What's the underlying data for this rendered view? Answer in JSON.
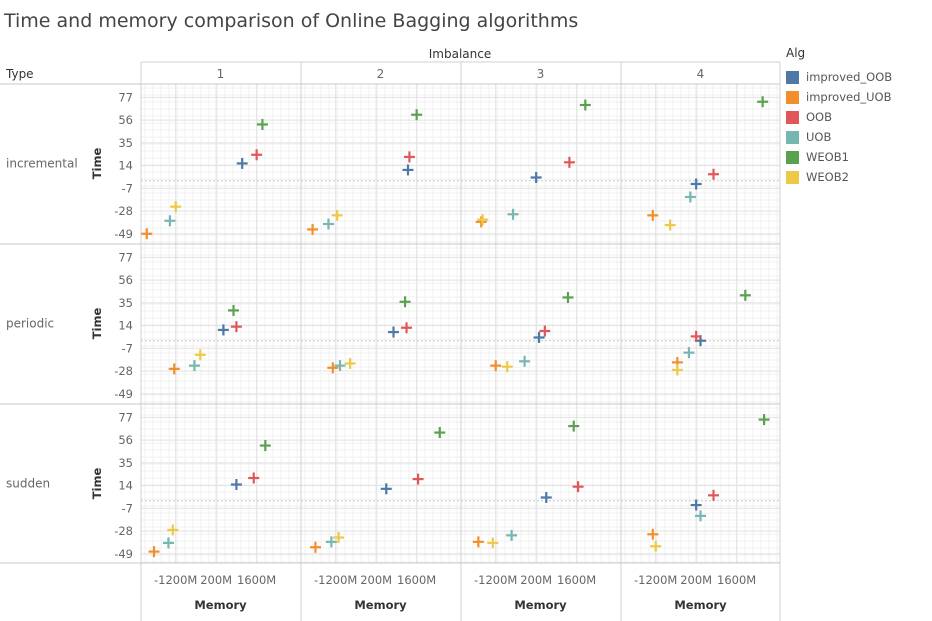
{
  "chart_data": {
    "type": "scatter",
    "title": "Time and memory comparison of Online Bagging algorithms",
    "column_header": "Imbalance",
    "columns": [
      "1",
      "2",
      "3",
      "4"
    ],
    "row_header": "Type",
    "rows": [
      "incremental",
      "periodic",
      "sudden"
    ],
    "xlabel": "Memory",
    "ylabel": "Time",
    "x_ticks": [
      {
        "value": -1200,
        "label": "-1200M"
      },
      {
        "value": 200,
        "label": "200M"
      },
      {
        "value": 1600,
        "label": "1600M"
      }
    ],
    "xlim": [
      -2400,
      3100
    ],
    "y_ticks": [
      77,
      56,
      35,
      14,
      -7,
      -28,
      -49
    ],
    "ylim": [
      -52,
      82
    ],
    "grid": true,
    "marker": "plus",
    "legend_title": "Alg",
    "legend_placement": "right",
    "series": [
      {
        "name": "improved_OOB",
        "color": "#4e79a7"
      },
      {
        "name": "improved_UOB",
        "color": "#f28e2b"
      },
      {
        "name": "OOB",
        "color": "#e15759"
      },
      {
        "name": "UOB",
        "color": "#76b7b2"
      },
      {
        "name": "WEOB1",
        "color": "#59a14f"
      },
      {
        "name": "WEOB2",
        "color": "#edc948"
      }
    ],
    "points": [
      {
        "type": "incremental",
        "imbalance": "1",
        "alg": "improved_OOB",
        "x": 1100,
        "y": 16
      },
      {
        "type": "incremental",
        "imbalance": "1",
        "alg": "improved_UOB",
        "x": -2200,
        "y": -49
      },
      {
        "type": "incremental",
        "imbalance": "1",
        "alg": "OOB",
        "x": 1600,
        "y": 24
      },
      {
        "type": "incremental",
        "imbalance": "1",
        "alg": "UOB",
        "x": -1400,
        "y": -37
      },
      {
        "type": "incremental",
        "imbalance": "1",
        "alg": "WEOB1",
        "x": 1800,
        "y": 52
      },
      {
        "type": "incremental",
        "imbalance": "1",
        "alg": "WEOB2",
        "x": -1200,
        "y": -24
      },
      {
        "type": "incremental",
        "imbalance": "2",
        "alg": "improved_OOB",
        "x": 1300,
        "y": 10
      },
      {
        "type": "incremental",
        "imbalance": "2",
        "alg": "improved_UOB",
        "x": -2000,
        "y": -45
      },
      {
        "type": "incremental",
        "imbalance": "2",
        "alg": "OOB",
        "x": 1350,
        "y": 22
      },
      {
        "type": "incremental",
        "imbalance": "2",
        "alg": "UOB",
        "x": -1450,
        "y": -40
      },
      {
        "type": "incremental",
        "imbalance": "2",
        "alg": "WEOB1",
        "x": 1600,
        "y": 61
      },
      {
        "type": "incremental",
        "imbalance": "2",
        "alg": "WEOB2",
        "x": -1150,
        "y": -32
      },
      {
        "type": "incremental",
        "imbalance": "3",
        "alg": "improved_OOB",
        "x": 200,
        "y": 3
      },
      {
        "type": "incremental",
        "imbalance": "3",
        "alg": "improved_UOB",
        "x": -1700,
        "y": -38
      },
      {
        "type": "incremental",
        "imbalance": "3",
        "alg": "OOB",
        "x": 1350,
        "y": 17
      },
      {
        "type": "incremental",
        "imbalance": "3",
        "alg": "UOB",
        "x": -600,
        "y": -31
      },
      {
        "type": "incremental",
        "imbalance": "3",
        "alg": "WEOB1",
        "x": 1900,
        "y": 70
      },
      {
        "type": "incremental",
        "imbalance": "3",
        "alg": "WEOB2",
        "x": -1650,
        "y": -36
      },
      {
        "type": "incremental",
        "imbalance": "4",
        "alg": "improved_OOB",
        "x": 200,
        "y": -3
      },
      {
        "type": "incremental",
        "imbalance": "4",
        "alg": "improved_UOB",
        "x": -1300,
        "y": -32
      },
      {
        "type": "incremental",
        "imbalance": "4",
        "alg": "OOB",
        "x": 800,
        "y": 6
      },
      {
        "type": "incremental",
        "imbalance": "4",
        "alg": "UOB",
        "x": 0,
        "y": -15
      },
      {
        "type": "incremental",
        "imbalance": "4",
        "alg": "WEOB1",
        "x": 2500,
        "y": 73
      },
      {
        "type": "incremental",
        "imbalance": "4",
        "alg": "WEOB2",
        "x": -700,
        "y": -41
      },
      {
        "type": "periodic",
        "imbalance": "1",
        "alg": "improved_OOB",
        "x": 450,
        "y": 10
      },
      {
        "type": "periodic",
        "imbalance": "1",
        "alg": "improved_UOB",
        "x": -1250,
        "y": -26
      },
      {
        "type": "periodic",
        "imbalance": "1",
        "alg": "OOB",
        "x": 900,
        "y": 13
      },
      {
        "type": "periodic",
        "imbalance": "1",
        "alg": "UOB",
        "x": -550,
        "y": -23
      },
      {
        "type": "periodic",
        "imbalance": "1",
        "alg": "WEOB1",
        "x": 800,
        "y": 28
      },
      {
        "type": "periodic",
        "imbalance": "1",
        "alg": "WEOB2",
        "x": -350,
        "y": -13
      },
      {
        "type": "periodic",
        "imbalance": "2",
        "alg": "improved_OOB",
        "x": 800,
        "y": 8
      },
      {
        "type": "periodic",
        "imbalance": "2",
        "alg": "improved_UOB",
        "x": -1300,
        "y": -25
      },
      {
        "type": "periodic",
        "imbalance": "2",
        "alg": "OOB",
        "x": 1250,
        "y": 12
      },
      {
        "type": "periodic",
        "imbalance": "2",
        "alg": "UOB",
        "x": -1050,
        "y": -23
      },
      {
        "type": "periodic",
        "imbalance": "2",
        "alg": "WEOB1",
        "x": 1200,
        "y": 36
      },
      {
        "type": "periodic",
        "imbalance": "2",
        "alg": "WEOB2",
        "x": -700,
        "y": -21
      },
      {
        "type": "periodic",
        "imbalance": "3",
        "alg": "improved_OOB",
        "x": 300,
        "y": 3
      },
      {
        "type": "periodic",
        "imbalance": "3",
        "alg": "improved_UOB",
        "x": -1200,
        "y": -23
      },
      {
        "type": "periodic",
        "imbalance": "3",
        "alg": "OOB",
        "x": 500,
        "y": 9
      },
      {
        "type": "periodic",
        "imbalance": "3",
        "alg": "UOB",
        "x": -200,
        "y": -19
      },
      {
        "type": "periodic",
        "imbalance": "3",
        "alg": "WEOB1",
        "x": 1300,
        "y": 40
      },
      {
        "type": "periodic",
        "imbalance": "3",
        "alg": "WEOB2",
        "x": -800,
        "y": -24
      },
      {
        "type": "periodic",
        "imbalance": "4",
        "alg": "improved_OOB",
        "x": 350,
        "y": 0
      },
      {
        "type": "periodic",
        "imbalance": "4",
        "alg": "improved_UOB",
        "x": -450,
        "y": -20
      },
      {
        "type": "periodic",
        "imbalance": "4",
        "alg": "OOB",
        "x": 200,
        "y": 4
      },
      {
        "type": "periodic",
        "imbalance": "4",
        "alg": "UOB",
        "x": -50,
        "y": -11
      },
      {
        "type": "periodic",
        "imbalance": "4",
        "alg": "WEOB1",
        "x": 1900,
        "y": 42
      },
      {
        "type": "periodic",
        "imbalance": "4",
        "alg": "WEOB2",
        "x": -450,
        "y": -27
      },
      {
        "type": "sudden",
        "imbalance": "1",
        "alg": "improved_OOB",
        "x": 900,
        "y": 15
      },
      {
        "type": "sudden",
        "imbalance": "1",
        "alg": "improved_UOB",
        "x": -1950,
        "y": -47
      },
      {
        "type": "sudden",
        "imbalance": "1",
        "alg": "OOB",
        "x": 1500,
        "y": 21
      },
      {
        "type": "sudden",
        "imbalance": "1",
        "alg": "UOB",
        "x": -1450,
        "y": -39
      },
      {
        "type": "sudden",
        "imbalance": "1",
        "alg": "WEOB1",
        "x": 1900,
        "y": 51
      },
      {
        "type": "sudden",
        "imbalance": "1",
        "alg": "WEOB2",
        "x": -1300,
        "y": -27
      },
      {
        "type": "sudden",
        "imbalance": "2",
        "alg": "improved_OOB",
        "x": 550,
        "y": 11
      },
      {
        "type": "sudden",
        "imbalance": "2",
        "alg": "improved_UOB",
        "x": -1900,
        "y": -43
      },
      {
        "type": "sudden",
        "imbalance": "2",
        "alg": "OOB",
        "x": 1650,
        "y": 20
      },
      {
        "type": "sudden",
        "imbalance": "2",
        "alg": "UOB",
        "x": -1350,
        "y": -38
      },
      {
        "type": "sudden",
        "imbalance": "2",
        "alg": "WEOB1",
        "x": 2400,
        "y": 63
      },
      {
        "type": "sudden",
        "imbalance": "2",
        "alg": "WEOB2",
        "x": -1100,
        "y": -34
      },
      {
        "type": "sudden",
        "imbalance": "3",
        "alg": "improved_OOB",
        "x": 550,
        "y": 3
      },
      {
        "type": "sudden",
        "imbalance": "3",
        "alg": "improved_UOB",
        "x": -1800,
        "y": -38
      },
      {
        "type": "sudden",
        "imbalance": "3",
        "alg": "OOB",
        "x": 1650,
        "y": 13
      },
      {
        "type": "sudden",
        "imbalance": "3",
        "alg": "UOB",
        "x": -650,
        "y": -32
      },
      {
        "type": "sudden",
        "imbalance": "3",
        "alg": "WEOB1",
        "x": 1500,
        "y": 69
      },
      {
        "type": "sudden",
        "imbalance": "3",
        "alg": "WEOB2",
        "x": -1300,
        "y": -39
      },
      {
        "type": "sudden",
        "imbalance": "4",
        "alg": "improved_OOB",
        "x": 200,
        "y": -4
      },
      {
        "type": "sudden",
        "imbalance": "4",
        "alg": "improved_UOB",
        "x": -1300,
        "y": -31
      },
      {
        "type": "sudden",
        "imbalance": "4",
        "alg": "OOB",
        "x": 800,
        "y": 5
      },
      {
        "type": "sudden",
        "imbalance": "4",
        "alg": "UOB",
        "x": 350,
        "y": -14
      },
      {
        "type": "sudden",
        "imbalance": "4",
        "alg": "WEOB1",
        "x": 2550,
        "y": 75
      },
      {
        "type": "sudden",
        "imbalance": "4",
        "alg": "WEOB2",
        "x": -1200,
        "y": -42
      }
    ]
  }
}
